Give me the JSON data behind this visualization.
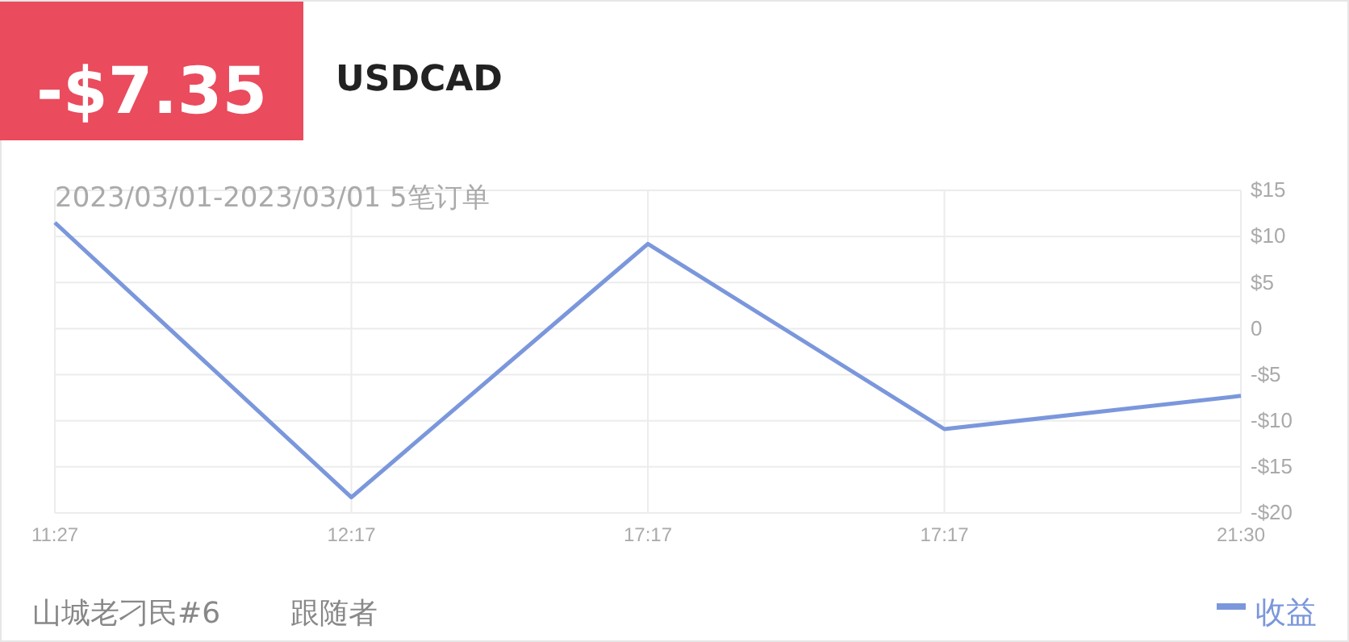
{
  "chart_data": {
    "type": "line",
    "title": "USDCAD",
    "subtitle": "2023/03/01-2023/03/01 5笔订单",
    "annotations": [
      "-$7.35",
      "山城老刁民#6",
      "跟随者"
    ],
    "categories": [
      "11:27",
      "12:17",
      "17:17",
      "17:17",
      "21:30"
    ],
    "series": [
      {
        "name": "收益",
        "color": "#7b97dc",
        "values": [
          11.5,
          -18.3,
          9.2,
          -10.9,
          -7.3
        ]
      }
    ],
    "ylim": [
      -20,
      15
    ],
    "yticks": [
      {
        "value": -20,
        "label": "-$20"
      },
      {
        "value": -15,
        "label": "-$15"
      },
      {
        "value": -10,
        "label": "-$10"
      },
      {
        "value": -5,
        "label": "-$5"
      },
      0,
      {
        "value": 5,
        "label": "$5"
      },
      {
        "value": 10,
        "label": "$10"
      },
      {
        "value": 15,
        "label": "$15"
      }
    ],
    "grid": true,
    "legend": "bottom right",
    "marker": "none",
    "line_style": "solid"
  }
}
